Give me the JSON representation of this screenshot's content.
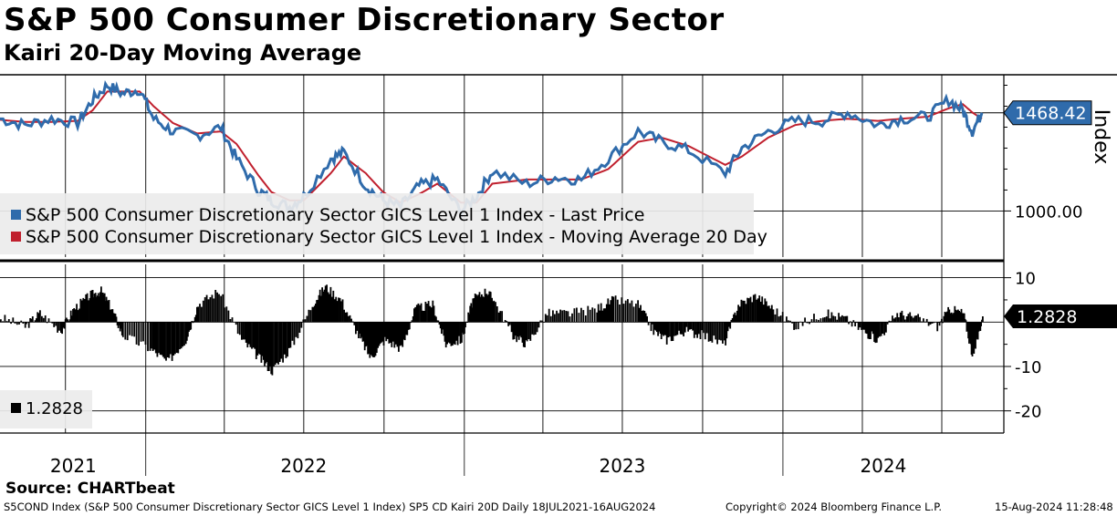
{
  "header": {
    "title": "S&P 500 Consumer Discretionary Sector",
    "subtitle": "Kairi 20-Day Moving Average"
  },
  "colors": {
    "price": "#2f6bab",
    "ma": "#c0202e",
    "kairi": "#000000",
    "last_price_tag": "#2f6bab",
    "kairi_tag": "#000000"
  },
  "chart_data": [
    {
      "type": "line",
      "panel": "top",
      "ylabel": "Index",
      "y_ticks": [
        1000
      ],
      "y_tick_labels": [
        "1000.00"
      ],
      "ylim": [
        780,
        1650
      ],
      "grid": true,
      "legend_placement": "bottom-left",
      "last_value_label": "1468.42",
      "x_labels": [
        "2021",
        "2022",
        "2023",
        "2024"
      ],
      "series": [
        {
          "name": "S&P 500 Consumer Discretionary Sector GICS Level 1 Index - Last Price",
          "x": [
            "2021-07-18",
            "2021-08-15",
            "2021-09-15",
            "2021-10-15",
            "2021-11-01",
            "2021-11-18",
            "2021-12-05",
            "2021-12-25",
            "2022-01-10",
            "2022-02-01",
            "2022-03-01",
            "2022-03-28",
            "2022-04-15",
            "2022-05-10",
            "2022-05-25",
            "2022-06-15",
            "2022-07-01",
            "2022-08-01",
            "2022-08-16",
            "2022-09-10",
            "2022-09-30",
            "2022-10-20",
            "2022-11-10",
            "2022-12-01",
            "2022-12-28",
            "2023-01-15",
            "2023-02-02",
            "2023-03-13",
            "2023-04-15",
            "2023-05-15",
            "2023-06-15",
            "2023-07-19",
            "2023-08-15",
            "2023-09-15",
            "2023-10-27",
            "2023-11-15",
            "2023-12-15",
            "2024-01-15",
            "2024-02-15",
            "2024-03-15",
            "2024-04-19",
            "2024-05-15",
            "2024-06-15",
            "2024-07-09",
            "2024-07-25",
            "2024-08-05",
            "2024-08-16"
          ],
          "values": [
            1440,
            1410,
            1440,
            1420,
            1530,
            1600,
            1560,
            1580,
            1440,
            1380,
            1360,
            1400,
            1250,
            1100,
            1050,
            1020,
            1070,
            1250,
            1280,
            1120,
            1050,
            1020,
            1120,
            1150,
            1000,
            1070,
            1190,
            1130,
            1160,
            1150,
            1250,
            1380,
            1330,
            1290,
            1180,
            1300,
            1380,
            1430,
            1430,
            1470,
            1410,
            1440,
            1450,
            1530,
            1480,
            1380,
            1468.42
          ]
        },
        {
          "name": "S&P 500 Consumer Discretionary Sector GICS Level 1 Index - Moving Average 20 Day",
          "x": [
            "2021-07-18",
            "2021-08-15",
            "2021-09-15",
            "2021-10-15",
            "2021-11-01",
            "2021-11-18",
            "2021-12-05",
            "2021-12-25",
            "2022-01-10",
            "2022-02-01",
            "2022-03-01",
            "2022-03-28",
            "2022-04-15",
            "2022-05-10",
            "2022-05-25",
            "2022-06-15",
            "2022-07-01",
            "2022-08-01",
            "2022-08-16",
            "2022-09-10",
            "2022-09-30",
            "2022-10-20",
            "2022-11-10",
            "2022-12-01",
            "2022-12-28",
            "2023-01-15",
            "2023-02-02",
            "2023-03-13",
            "2023-04-15",
            "2023-05-15",
            "2023-06-15",
            "2023-07-19",
            "2023-08-15",
            "2023-09-15",
            "2023-10-27",
            "2023-11-15",
            "2023-12-15",
            "2024-01-15",
            "2024-02-15",
            "2024-03-15",
            "2024-04-19",
            "2024-05-15",
            "2024-06-15",
            "2024-07-09",
            "2024-07-25",
            "2024-08-05",
            "2024-08-16"
          ],
          "values": [
            1435,
            1425,
            1425,
            1430,
            1480,
            1570,
            1570,
            1570,
            1500,
            1420,
            1370,
            1380,
            1320,
            1170,
            1090,
            1050,
            1050,
            1180,
            1260,
            1180,
            1090,
            1040,
            1080,
            1130,
            1040,
            1040,
            1130,
            1150,
            1150,
            1150,
            1200,
            1330,
            1350,
            1310,
            1220,
            1260,
            1350,
            1410,
            1430,
            1440,
            1430,
            1440,
            1450,
            1490,
            1510,
            1470,
            1440
          ]
        }
      ]
    },
    {
      "type": "bar",
      "panel": "bottom",
      "y_ticks": [
        10,
        -10,
        -20
      ],
      "y_tick_labels": [
        "10",
        "-10",
        "-20"
      ],
      "ylim": [
        -25,
        13
      ],
      "grid": true,
      "legend_placement": "bottom-left",
      "last_value_label": "1.2828",
      "series": [
        {
          "name": "1.2828",
          "x": [
            "2021-07-18",
            "2021-08-15",
            "2021-09-01",
            "2021-09-25",
            "2021-10-10",
            "2021-10-28",
            "2021-11-10",
            "2021-11-22",
            "2021-12-05",
            "2022-01-05",
            "2022-01-25",
            "2022-02-15",
            "2022-03-01",
            "2022-03-25",
            "2022-04-20",
            "2022-05-10",
            "2022-05-25",
            "2022-06-15",
            "2022-07-10",
            "2022-07-25",
            "2022-08-12",
            "2022-09-01",
            "2022-09-15",
            "2022-10-01",
            "2022-10-20",
            "2022-11-05",
            "2022-11-25",
            "2022-12-10",
            "2022-12-28",
            "2023-01-10",
            "2023-01-25",
            "2023-02-03",
            "2023-02-25",
            "2023-03-13",
            "2023-04-05",
            "2023-05-01",
            "2023-06-01",
            "2023-06-20",
            "2023-07-18",
            "2023-08-05",
            "2023-08-20",
            "2023-09-10",
            "2023-10-01",
            "2023-10-25",
            "2023-11-10",
            "2023-12-01",
            "2023-12-20",
            "2024-01-15",
            "2024-02-15",
            "2024-03-10",
            "2024-04-01",
            "2024-04-18",
            "2024-05-10",
            "2024-06-01",
            "2024-06-25",
            "2024-07-10",
            "2024-07-25",
            "2024-08-05",
            "2024-08-16"
          ],
          "values": [
            1,
            -1,
            2,
            -2,
            3,
            6,
            7,
            3,
            -3,
            -6,
            -9,
            -4,
            4,
            7,
            -4,
            -8,
            -11,
            -6,
            4,
            8,
            5,
            -3,
            -8,
            -4,
            -6,
            3,
            4,
            -5,
            -4,
            5,
            7,
            5,
            -3,
            -5,
            2,
            2,
            3,
            5,
            4,
            -2,
            -4,
            -2,
            -3,
            -5,
            4,
            6,
            3,
            -1,
            2,
            1,
            -2,
            -4,
            2,
            1,
            -1,
            3,
            2,
            -8,
            1.2828
          ]
        }
      ]
    }
  ],
  "footer": {
    "source": "Source: CHARTbeat",
    "left": "S5COND Index (S&P 500 Consumer Discretionary Sector GICS Level 1 Index) SP5 CD Kairi 20D  Daily 18JUL2021-16AUG2024",
    "copyright": "Copyright© 2024 Bloomberg Finance L.P.",
    "timestamp": "15-Aug-2024 11:28:48"
  }
}
